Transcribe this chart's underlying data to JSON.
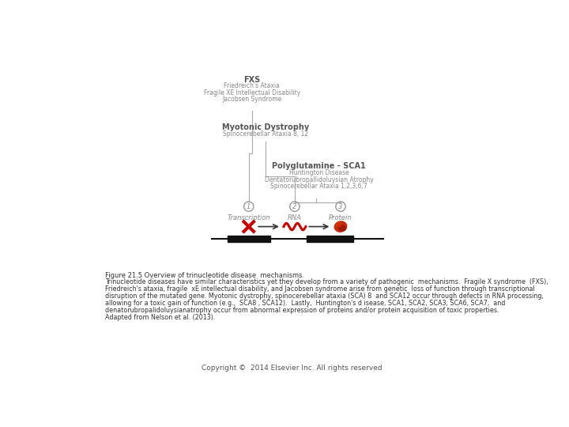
{
  "bg_color": "#ffffff",
  "fig_width": 7.2,
  "fig_height": 5.4,
  "dpi": 100,
  "title_label": "Figure 21.5 Overview of trinucleotide disease  mechanisms.",
  "caption_lines": [
    "Trinucleotide diseases have similar characteristics yet they develop from a variety of pathogenic  mechanisms.  Fragile X syndrome  (FXS),",
    "Friedreich's ataxia, fragile  xE intellectual disability, and Jacobsen syndrome arise from genetic  loss of function through transcriptional",
    "disruption of the mutated gene. Myotonic dystrophy, spinocerebellar ataxia (SCA) 8  and SCA12 occur through defects in RNA processing,",
    "allowing for a toxic gain of function (e.g.,  SCA8 , SCA12).  Lastly,  Huntington's d isease, SCA1, SCA2, SCA3, SCA6, SCA7,  and",
    "denatorubropalidoluysianatrophy occur from abnormal expression of proteins and/or protein acquisition of toxic properties.",
    "Adapted from Nelson et al. (2013)."
  ],
  "copyright": "Copyright ©  2014 Elsevier Inc. All rights reserved",
  "fxs_label_bold": "FXS",
  "fxs_sublines": [
    "Friedreich's Ataxia",
    "Fragile XE Intellectual Disability",
    "Jacobsen Syndrome"
  ],
  "myotonic_label_bold": "Myotonic Dystrophy",
  "myotonic_sublines": [
    "Spinocerebellar Ataxia 8, 12"
  ],
  "polyglut_label_bold": "Polyglutamine - SCA1",
  "polyglut_sublines": [
    "Huntington Disease",
    "Dentatorubropallidoluysian Atrophy",
    "Spinocerebellar Ataxia 1,2,3,6,7"
  ],
  "step1_label": "Transcription",
  "step2_label": "RNA",
  "step3_label": "Protein",
  "arrow_color": "#333333",
  "line_color": "#aaaaaa",
  "dna_bar_color": "#111111",
  "red_x_color": "#cc0000",
  "rna_wave_color": "#cc0000",
  "protein_color": "#cc2200",
  "circle_color": "#999999",
  "circle_text_color": "#888888",
  "label_color": "#888888",
  "text_gray": "#888888",
  "text_dark": "#555555",
  "caption_color": "#333333"
}
